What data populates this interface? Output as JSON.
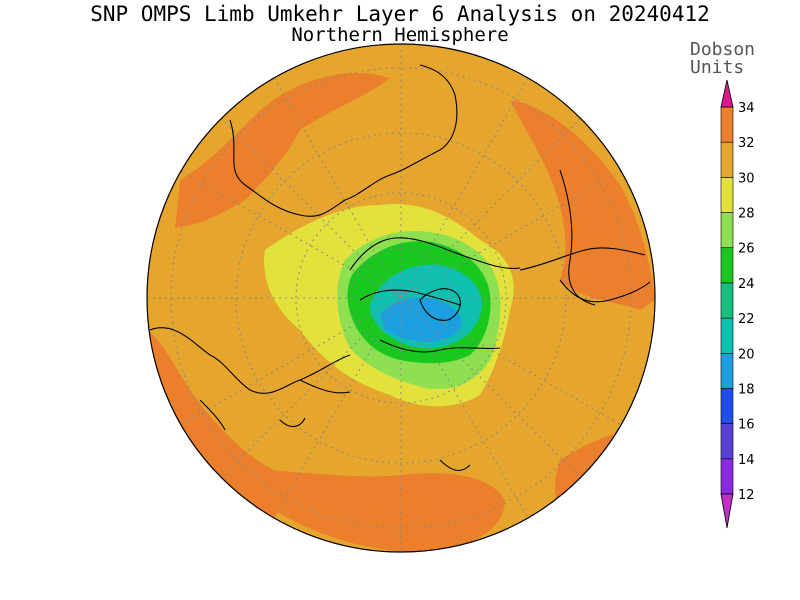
{
  "title": "SNP OMPS Limb Umkehr Layer 6 Analysis on 20240412",
  "subtitle": "Northern Hemisphere",
  "colorbar": {
    "units_line1": "Dobson",
    "units_line2": "Units",
    "levels": [
      12,
      14,
      16,
      18,
      20,
      22,
      24,
      26,
      28,
      30,
      32,
      34
    ],
    "colors": [
      "#8a2be2",
      "#5a3fd6",
      "#1f4fe8",
      "#1aa0e0",
      "#0fc0b0",
      "#18c080",
      "#19c81e",
      "#8ee050",
      "#e3e23c",
      "#e6a62e",
      "#ec7f2c",
      "#e61a14"
    ],
    "over_color": "#d81a8c",
    "under_color": "#c02ec6"
  },
  "map": {
    "projection": "north polar stereographic",
    "background_color": "#e6a62e",
    "low_region_color": "#1aa0e0",
    "high_region_color": "#ec7f2c"
  }
}
